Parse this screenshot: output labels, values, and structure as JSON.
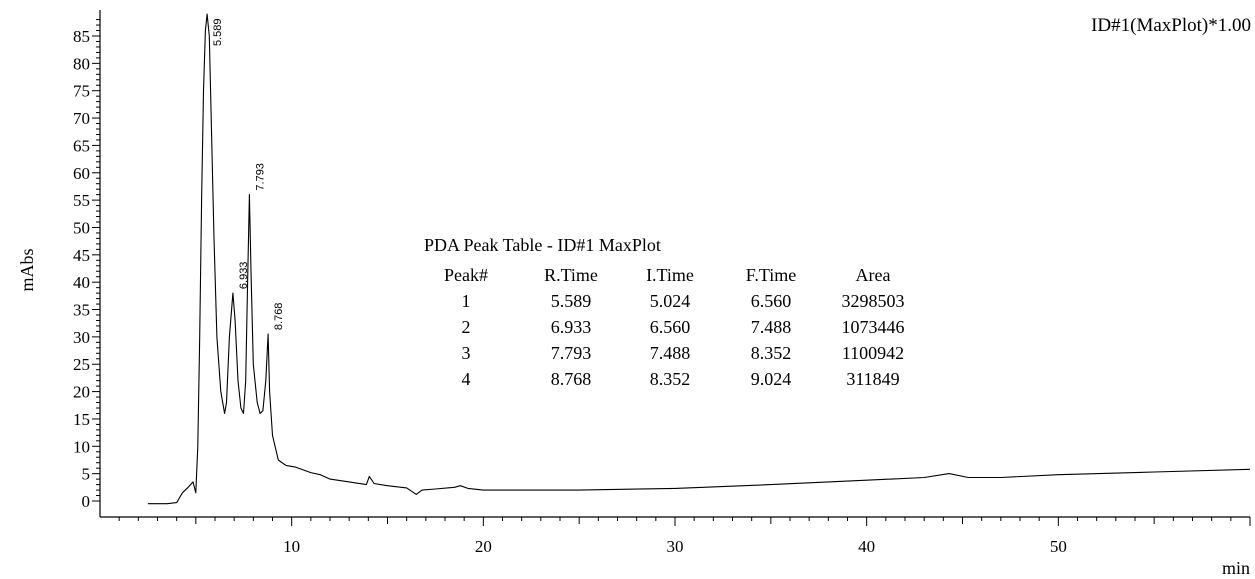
{
  "chart_data": {
    "type": "line",
    "title": "ID#1(MaxPlot)*1.00",
    "xlabel": "min",
    "ylabel": "mAbs",
    "xlim": [
      0,
      60
    ],
    "ylim": [
      -2,
      88
    ],
    "x_ticks": [
      10,
      20,
      30,
      40,
      50
    ],
    "y_ticks": [
      0,
      5,
      10,
      15,
      20,
      25,
      30,
      35,
      40,
      45,
      50,
      55,
      60,
      65,
      70,
      75,
      80,
      85
    ],
    "grid": false,
    "series": [
      {
        "x": [
          2.5,
          3.5,
          4.0,
          4.3,
          4.6,
          4.85,
          5.0,
          5.1,
          5.2,
          5.3,
          5.4,
          5.5,
          5.589,
          5.7,
          5.8,
          5.95,
          6.1,
          6.3,
          6.5,
          6.6,
          6.75,
          6.933,
          7.05,
          7.2,
          7.35,
          7.488,
          7.6,
          7.7,
          7.793,
          7.88,
          8.0,
          8.2,
          8.352,
          8.5,
          8.65,
          8.768,
          8.85,
          9.0,
          9.3,
          9.7,
          10.2,
          11.0,
          11.5,
          12.0,
          13.0,
          13.9,
          14.05,
          14.3,
          15.0,
          16.0,
          16.5,
          16.8,
          17.5,
          18.5,
          18.8,
          19.2,
          20,
          25,
          30,
          35,
          40,
          43.0,
          44.3,
          45.3,
          47.0,
          50,
          55,
          60
        ],
        "y": [
          -0.5,
          -0.5,
          -0.3,
          1.5,
          2.5,
          3.5,
          1.5,
          10,
          30,
          55,
          75,
          86,
          89,
          85,
          70,
          48,
          30,
          20,
          16,
          18,
          30,
          38,
          33,
          22,
          17,
          16,
          22,
          40,
          56,
          42,
          25,
          18,
          16,
          16.5,
          22,
          30.5,
          20,
          12,
          7.5,
          6.5,
          6.2,
          5.2,
          4.8,
          4.0,
          3.5,
          3.0,
          4.5,
          3.2,
          2.8,
          2.4,
          1.2,
          2.0,
          2.2,
          2.5,
          2.8,
          2.3,
          2.0,
          2.0,
          2.3,
          3.0,
          3.8,
          4.3,
          5.0,
          4.3,
          4.3,
          4.8,
          5.3,
          5.8
        ]
      }
    ],
    "peak_labels": [
      "5.589",
      "6.933",
      "7.793",
      "8.768"
    ],
    "peak_table": {
      "title": "PDA Peak Table - ID#1 MaxPlot",
      "columns": [
        "Peak#",
        "R.Time",
        "I.Time",
        "F.Time",
        "Area"
      ],
      "rows": [
        [
          "1",
          "5.589",
          "5.024",
          "6.560",
          "3298503"
        ],
        [
          "2",
          "6.933",
          "6.560",
          "7.488",
          "1073446"
        ],
        [
          "3",
          "7.793",
          "7.488",
          "8.352",
          "1100942"
        ],
        [
          "4",
          "8.768",
          "8.352",
          "9.024",
          "311849"
        ]
      ]
    }
  }
}
